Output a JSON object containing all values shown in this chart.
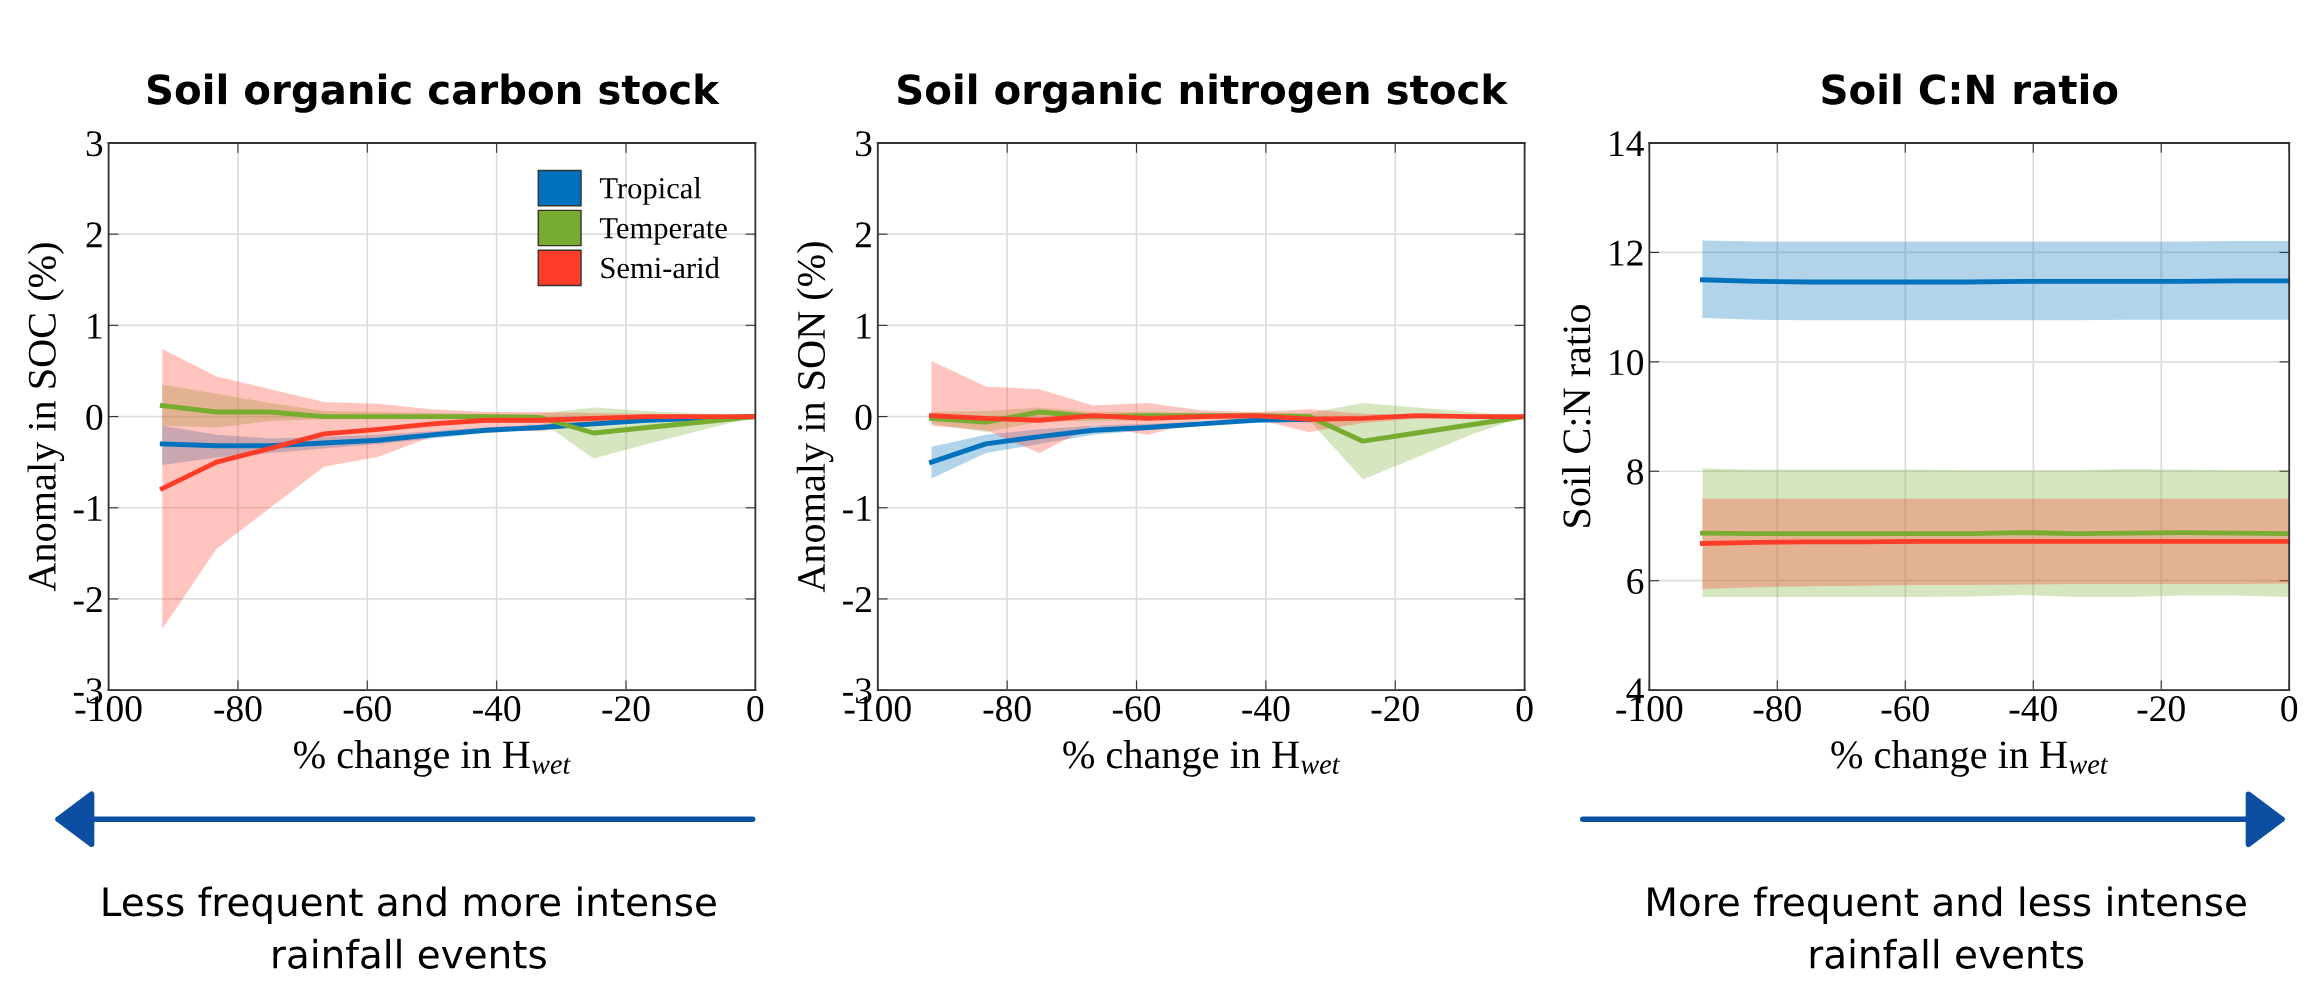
{
  "chart_data": [
    {
      "type": "line",
      "title": "Soil organic carbon stock",
      "xlabel": "% change in H$_{wet}$",
      "ylabel": "Anomaly in SOC (%)",
      "xlim": [
        -100,
        0
      ],
      "xticks": [
        -100,
        -80,
        -60,
        -40,
        -20,
        0
      ],
      "ylim": [
        -3,
        3
      ],
      "yticks": [
        -3,
        -2,
        -1,
        0,
        1,
        2,
        3
      ],
      "grid": true,
      "legend": "top right",
      "x": [
        -91.7,
        -83.3,
        -75,
        -66.7,
        -58.3,
        -50,
        -41.7,
        -33.3,
        -25,
        -16.7,
        -8.3,
        0
      ],
      "series": [
        {
          "name": "Tropical",
          "color": "#0072bd",
          "values": [
            -0.3,
            -0.32,
            -0.32,
            -0.29,
            -0.26,
            -0.2,
            -0.15,
            -0.12,
            -0.08,
            -0.04,
            -0.02,
            0
          ],
          "lower": [
            -0.53,
            -0.45,
            -0.4,
            -0.35,
            -0.3,
            -0.24,
            -0.18,
            -0.15,
            -0.1,
            -0.06,
            -0.03,
            0
          ],
          "upper": [
            -0.1,
            -0.2,
            -0.24,
            -0.22,
            -0.2,
            -0.16,
            -0.12,
            -0.09,
            -0.06,
            -0.03,
            -0.01,
            0
          ]
        },
        {
          "name": "Temperate",
          "color": "#77ac30",
          "values": [
            0.12,
            0.05,
            0.05,
            0.0,
            0.0,
            0.0,
            0.0,
            -0.01,
            -0.18,
            -0.12,
            -0.06,
            0
          ],
          "lower": [
            -0.1,
            -0.12,
            -0.05,
            -0.03,
            -0.03,
            -0.03,
            -0.03,
            -0.05,
            -0.46,
            -0.3,
            -0.15,
            0
          ],
          "upper": [
            0.35,
            0.25,
            0.15,
            0.06,
            0.05,
            0.04,
            0.03,
            0.03,
            0.1,
            0.06,
            0.03,
            0
          ]
        },
        {
          "name": "Semi-arid",
          "color": "#ff3c28",
          "values": [
            -0.79,
            -0.5,
            -0.35,
            -0.19,
            -0.14,
            -0.08,
            -0.04,
            -0.04,
            -0.02,
            0,
            0,
            0
          ],
          "lower": [
            -2.33,
            -1.45,
            -1.0,
            -0.55,
            -0.44,
            -0.22,
            -0.15,
            -0.16,
            -0.08,
            -0.04,
            -0.02,
            0
          ],
          "upper": [
            0.74,
            0.44,
            0.3,
            0.16,
            0.14,
            0.08,
            0.05,
            0.05,
            0.04,
            0.03,
            0.02,
            0
          ]
        }
      ],
      "annotations": [
        "Less frequent and more intense\nrainfall events"
      ]
    },
    {
      "type": "line",
      "title": "Soil organic nitrogen stock",
      "xlabel": "% change in H$_{wet}$",
      "ylabel": "Anomaly in SON (%)",
      "xlim": [
        -100,
        0
      ],
      "xticks": [
        -100,
        -80,
        -60,
        -40,
        -20,
        0
      ],
      "ylim": [
        -3,
        3
      ],
      "yticks": [
        -3,
        -2,
        -1,
        0,
        1,
        2,
        3
      ],
      "grid": true,
      "x": [
        -91.7,
        -83.3,
        -75,
        -66.7,
        -58.3,
        -50,
        -41.7,
        -33.3,
        -25,
        -16.7,
        -8.3,
        0
      ],
      "series": [
        {
          "color": "#0072bd",
          "values": [
            -0.5,
            -0.3,
            -0.22,
            -0.15,
            -0.12,
            -0.08,
            -0.04,
            -0.03,
            null,
            null,
            null,
            null
          ],
          "lower": [
            -0.68,
            -0.4,
            -0.3,
            -0.2,
            -0.15,
            -0.1,
            -0.06,
            -0.04,
            -0.03,
            -0.01,
            0,
            0
          ],
          "upper": [
            -0.33,
            -0.2,
            -0.14,
            -0.1,
            -0.08,
            -0.06,
            -0.03,
            -0.02,
            -0.01,
            0,
            0,
            0
          ]
        },
        {
          "color": "#77ac30",
          "values": [
            -0.02,
            -0.06,
            0.05,
            0,
            0.01,
            0.01,
            0.01,
            0.0,
            -0.27,
            -0.18,
            -0.09,
            0
          ],
          "lower": [
            -0.08,
            -0.17,
            -0.06,
            -0.05,
            -0.04,
            -0.03,
            -0.03,
            -0.04,
            -0.69,
            -0.45,
            -0.2,
            0
          ],
          "upper": [
            0.05,
            0.06,
            0.1,
            0.05,
            0.05,
            0.04,
            0.04,
            0.04,
            0.15,
            0.1,
            0.05,
            0
          ]
        },
        {
          "color": "#ff3c28",
          "values": [
            0.01,
            -0.02,
            -0.04,
            0.01,
            -0.02,
            0,
            0.01,
            -0.03,
            -0.02,
            0.01,
            0,
            0
          ],
          "lower": [
            -0.1,
            -0.15,
            -0.4,
            -0.1,
            -0.2,
            -0.05,
            -0.03,
            -0.17,
            -0.07,
            -0.02,
            -0.01,
            0
          ],
          "upper": [
            0.61,
            0.33,
            0.3,
            0.12,
            0.15,
            0.07,
            0.05,
            0.08,
            0.03,
            0.02,
            0.01,
            0
          ]
        }
      ]
    },
    {
      "type": "line",
      "title": "Soil C:N ratio",
      "xlabel": "% change in H$_{wet}$",
      "ylabel": "Soil C:N ratio",
      "xlim": [
        -100,
        0
      ],
      "xticks": [
        -100,
        -80,
        -60,
        -40,
        -20,
        0
      ],
      "ylim": [
        4,
        14
      ],
      "yticks": [
        4,
        6,
        8,
        10,
        12,
        14
      ],
      "grid": true,
      "x": [
        -91.7,
        -83.3,
        -75,
        -66.7,
        -58.3,
        -50,
        -41.7,
        -33.3,
        -25,
        -16.7,
        -8.3,
        0
      ],
      "series": [
        {
          "color": "#0072bd",
          "values": [
            11.5,
            11.47,
            11.46,
            11.46,
            11.46,
            11.46,
            11.47,
            11.47,
            11.47,
            11.47,
            11.48,
            11.48
          ],
          "lower": [
            10.8,
            10.77,
            10.76,
            10.76,
            10.76,
            10.76,
            10.76,
            10.76,
            10.77,
            10.77,
            10.77,
            10.77
          ],
          "upper": [
            12.22,
            12.2,
            12.2,
            12.2,
            12.2,
            12.2,
            12.2,
            12.2,
            12.2,
            12.2,
            12.21,
            12.21
          ]
        },
        {
          "color": "#77ac30",
          "values": [
            6.87,
            6.86,
            6.86,
            6.86,
            6.86,
            6.86,
            6.88,
            6.86,
            6.87,
            6.88,
            6.87,
            6.86
          ],
          "lower": [
            5.7,
            5.7,
            5.7,
            5.7,
            5.7,
            5.71,
            5.74,
            5.7,
            5.7,
            5.73,
            5.73,
            5.7
          ],
          "upper": [
            8.05,
            8.03,
            8.03,
            8.03,
            8.03,
            8.02,
            8.02,
            8.02,
            8.04,
            8.03,
            8.02,
            8.02
          ]
        },
        {
          "color": "#ff3c28",
          "values": [
            6.68,
            6.7,
            6.71,
            6.71,
            6.72,
            6.72,
            6.72,
            6.72,
            6.72,
            6.72,
            6.72,
            6.72
          ],
          "lower": [
            5.85,
            5.88,
            5.9,
            5.91,
            5.92,
            5.92,
            5.93,
            5.94,
            5.94,
            5.94,
            5.94,
            5.95
          ],
          "upper": [
            7.5,
            7.5,
            7.5,
            7.5,
            7.5,
            7.5,
            7.5,
            7.5,
            7.5,
            7.5,
            7.5,
            7.5
          ]
        }
      ],
      "annotations": [
        "More frequent and less intense\nrainfall events"
      ]
    }
  ]
}
